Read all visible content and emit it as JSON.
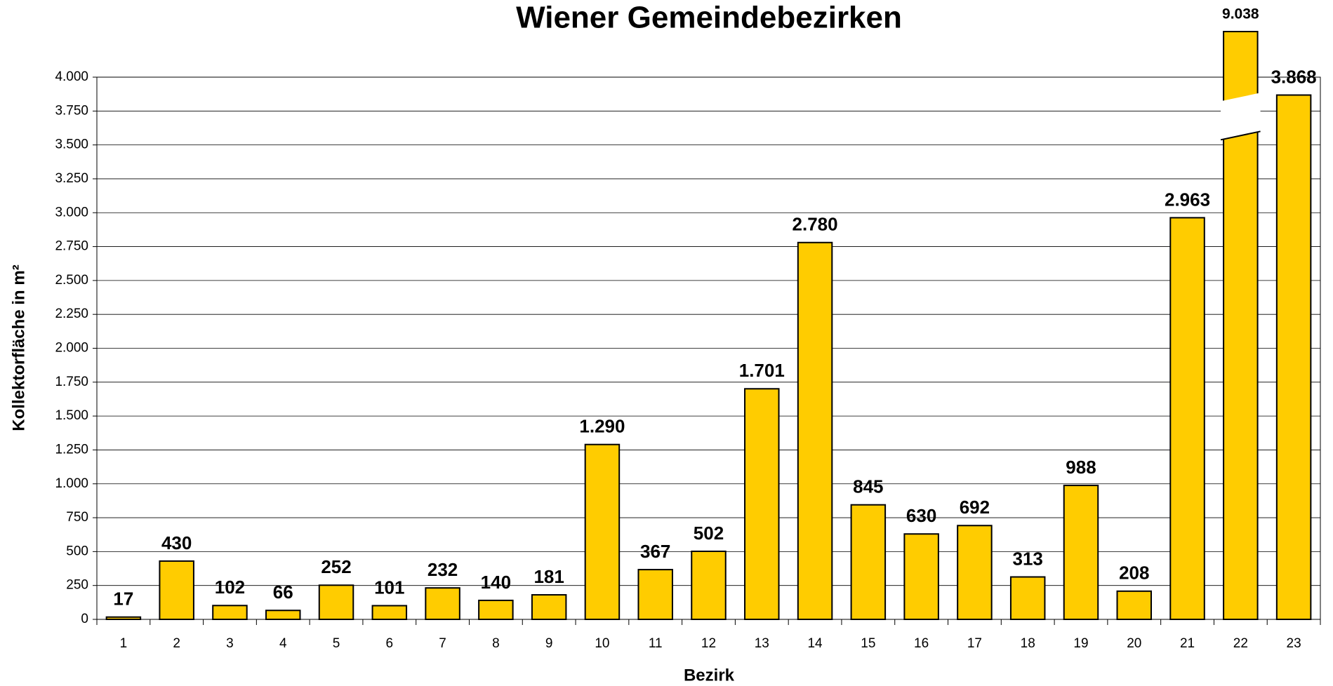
{
  "chart_data": {
    "type": "bar",
    "title": "Wiener Gemeindebezirken",
    "xlabel": "Bezirk",
    "ylabel": "Kollektorfläche in m²",
    "categories": [
      "1",
      "2",
      "3",
      "4",
      "5",
      "6",
      "7",
      "8",
      "9",
      "10",
      "11",
      "12",
      "13",
      "14",
      "15",
      "16",
      "17",
      "18",
      "19",
      "20",
      "21",
      "22",
      "23"
    ],
    "values": [
      17,
      430,
      102,
      66,
      252,
      101,
      232,
      140,
      181,
      1290,
      367,
      502,
      1701,
      2780,
      845,
      630,
      692,
      313,
      988,
      208,
      2963,
      9038,
      3868
    ],
    "value_labels": [
      "17",
      "430",
      "102",
      "66",
      "252",
      "101",
      "232",
      "140",
      "181",
      "1.290",
      "367",
      "502",
      "1.701",
      "2.780",
      "845",
      "630",
      "692",
      "313",
      "988",
      "208",
      "2.963",
      "9.038",
      "3.868"
    ],
    "color": "#ffcc00",
    "ylim": [
      0,
      4000
    ],
    "yticks": [
      0,
      250,
      500,
      750,
      {
        "value": 1000,
        "label": "1.000"
      },
      {
        "value": 1250,
        "label": "1.250"
      },
      {
        "value": 1500,
        "label": "1.500"
      },
      {
        "value": 1750,
        "label": "1.750"
      },
      {
        "value": 2000,
        "label": "2.000"
      },
      {
        "value": 2250,
        "label": "2.250"
      },
      {
        "value": 2500,
        "label": "2.500"
      },
      {
        "value": 2750,
        "label": "2.750"
      },
      {
        "value": 3000,
        "label": "3.000"
      },
      {
        "value": 3250,
        "label": "3.250"
      },
      {
        "value": 3500,
        "label": "3.500"
      },
      {
        "value": 3750,
        "label": "3.750"
      },
      {
        "value": 4000,
        "label": "4.000"
      }
    ],
    "grid": true
  }
}
